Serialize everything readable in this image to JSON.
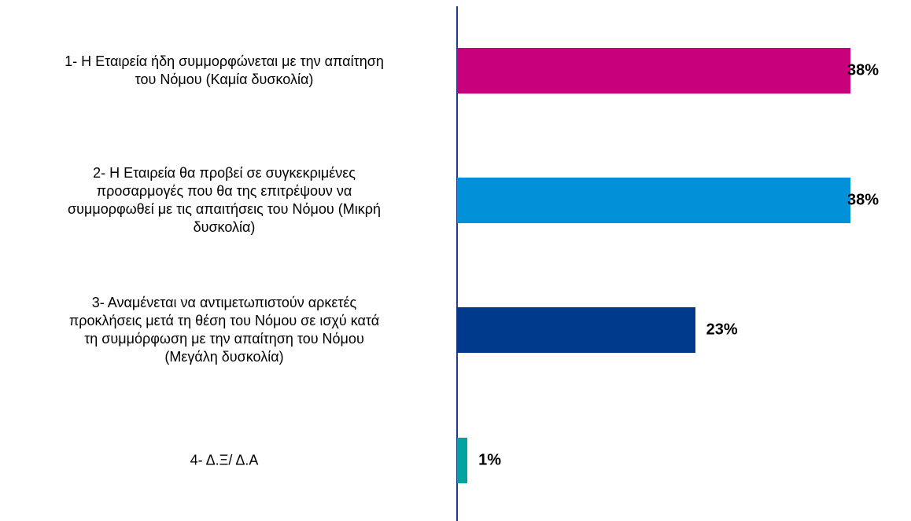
{
  "chart_data": {
    "type": "bar",
    "orientation": "horizontal",
    "categories": [
      "1- Η Εταιρεία ήδη συμμορφώνεται με την απαίτηση\nτου Νόμου (Καμία δυσκολία)",
      "2- Η Εταιρεία θα προβεί σε συγκεκριμένες\nπροσαρμογές που θα της επιτρέψουν να\nσυμμορφωθεί με τις απαιτήσεις του Νόμου (Μικρή\nδυσκολία)",
      "3- Αναμένεται να αντιμετωπιστούν αρκετές\nπροκλήσεις μετά τη θέση του Νόμου σε ισχύ κατά\nτη συμμόρφωση με την απαίτηση του Νόμου\n(Μεγάλη δυσκολία)",
      "4- Δ.Ξ/ Δ.Α"
    ],
    "values": [
      38,
      38,
      23,
      1
    ],
    "value_labels": [
      "38%",
      "38%",
      "23%",
      "1%"
    ],
    "colors": [
      "#c8007c",
      "#0091d9",
      "#003a8c",
      "#00a3a0"
    ]
  }
}
